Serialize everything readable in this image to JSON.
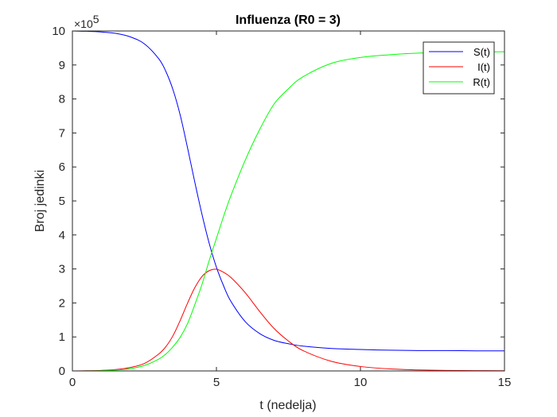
{
  "chart_data": {
    "type": "line",
    "title": "Influenza (R0 = 3)",
    "xlabel": "t (nedelja)",
    "ylabel": "Broj jedinki",
    "xlim": [
      0,
      15
    ],
    "ylim": [
      0,
      10
    ],
    "y_exponent_base": "×10",
    "y_exponent_power": "5",
    "x_ticks": [
      0,
      5,
      10,
      15
    ],
    "y_ticks": [
      0,
      1,
      2,
      3,
      4,
      5,
      6,
      7,
      8,
      9,
      10
    ],
    "grid": false,
    "legend_position": "top-right",
    "series": [
      {
        "name": "S(t)",
        "color": "#0000ff",
        "x": [
          0,
          0.5,
          1,
          1.5,
          2,
          2.5,
          3,
          3.25,
          3.5,
          3.75,
          4,
          4.25,
          4.5,
          4.75,
          5,
          5.25,
          5.5,
          6,
          6.5,
          7,
          7.5,
          8,
          9,
          10,
          11,
          12,
          13,
          14,
          15
        ],
        "y": [
          10,
          9.99,
          9.97,
          9.93,
          9.83,
          9.62,
          9.18,
          8.8,
          8.25,
          7.5,
          6.55,
          5.55,
          4.6,
          3.75,
          3.05,
          2.5,
          2.05,
          1.45,
          1.1,
          0.9,
          0.8,
          0.73,
          0.66,
          0.63,
          0.61,
          0.6,
          0.6,
          0.59,
          0.59
        ]
      },
      {
        "name": "I(t)",
        "color": "#ff0000",
        "x": [
          0,
          0.5,
          1,
          1.5,
          2,
          2.5,
          3,
          3.25,
          3.5,
          3.75,
          4,
          4.25,
          4.5,
          4.75,
          5,
          5.25,
          5.5,
          6,
          6.5,
          7,
          7.5,
          8,
          9,
          10,
          11,
          12,
          13,
          14,
          15
        ],
        "y": [
          0,
          0.005,
          0.015,
          0.04,
          0.1,
          0.22,
          0.5,
          0.72,
          1.05,
          1.5,
          2.0,
          2.45,
          2.78,
          2.95,
          2.99,
          2.9,
          2.75,
          2.3,
          1.75,
          1.25,
          0.88,
          0.6,
          0.28,
          0.13,
          0.06,
          0.03,
          0.015,
          0.01,
          0.005
        ]
      },
      {
        "name": "R(t)",
        "color": "#00ff00",
        "x": [
          0,
          0.5,
          1,
          1.5,
          2,
          2.5,
          3,
          3.25,
          3.5,
          3.75,
          4,
          4.25,
          4.5,
          4.75,
          5,
          5.25,
          5.5,
          6,
          6.5,
          7,
          7.5,
          8,
          9,
          10,
          11,
          12,
          13,
          14,
          15
        ],
        "y": [
          0,
          0.002,
          0.008,
          0.025,
          0.065,
          0.16,
          0.35,
          0.5,
          0.72,
          1.0,
          1.4,
          1.95,
          2.55,
          3.25,
          3.9,
          4.55,
          5.15,
          6.2,
          7.1,
          7.85,
          8.3,
          8.65,
          9.05,
          9.22,
          9.3,
          9.35,
          9.37,
          9.38,
          9.39
        ]
      }
    ]
  }
}
